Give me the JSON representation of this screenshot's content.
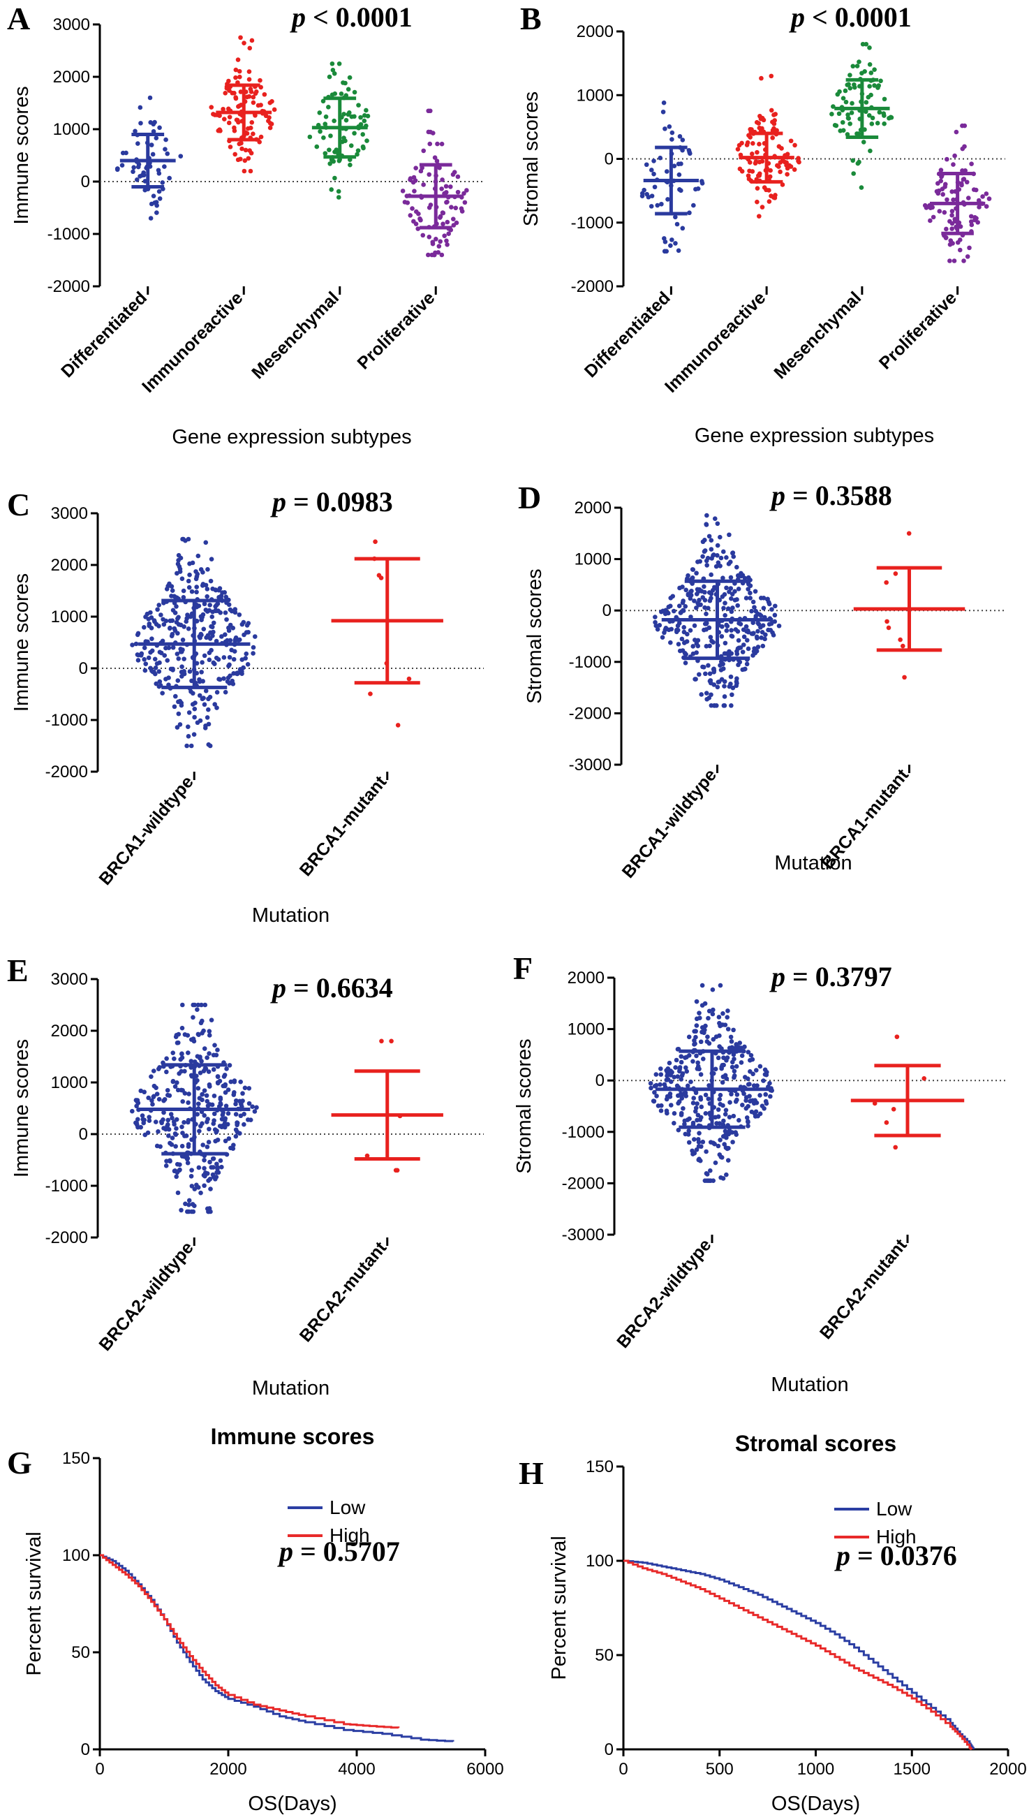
{
  "chart_data": [
    {
      "id": "A",
      "type": "scatter",
      "letter": "A",
      "p_prefix": "p",
      "p_rest": " < 0.0001",
      "ylabel": "Immune scores",
      "xlabel": "Gene expression subtypes",
      "ylim": [
        -2000,
        3000
      ],
      "yticks": [
        -2000,
        -1000,
        0,
        1000,
        2000,
        3000
      ],
      "categories": [
        "Differentiated",
        "Immunoreactive",
        "Mesenchymal",
        "Proliferative"
      ],
      "series": [
        {
          "name": "Differentiated",
          "color": "#2a3a9e",
          "mean": 400,
          "sd": 500,
          "min": -700,
          "max": 1600,
          "n": 60
        },
        {
          "name": "Immunoreactive",
          "color": "#e8211e",
          "mean": 1320,
          "sd": 520,
          "min": 200,
          "max": 2750,
          "n": 110
        },
        {
          "name": "Mesenchymal",
          "color": "#1a8a3a",
          "mean": 1030,
          "sd": 560,
          "min": -300,
          "max": 2250,
          "n": 80
        },
        {
          "name": "Proliferative",
          "color": "#7a2a9a",
          "mean": -280,
          "sd": 600,
          "min": -1400,
          "max": 1350,
          "n": 100
        }
      ]
    },
    {
      "id": "B",
      "type": "scatter",
      "letter": "B",
      "p_prefix": "p",
      "p_rest": " < 0.0001",
      "ylabel": "Stromal scores",
      "xlabel": "Gene expression subtypes",
      "ylim": [
        -2000,
        2000
      ],
      "yticks": [
        -2000,
        -1000,
        0,
        1000,
        2000
      ],
      "categories": [
        "Differentiated",
        "Immunoreactive",
        "Mesenchymal",
        "Proliferative"
      ],
      "series": [
        {
          "name": "Differentiated",
          "color": "#2a3a9e",
          "mean": -340,
          "sd": 520,
          "min": -1450,
          "max": 880,
          "n": 60
        },
        {
          "name": "Immunoreactive",
          "color": "#e8211e",
          "mean": 20,
          "sd": 380,
          "min": -900,
          "max": 1300,
          "n": 110
        },
        {
          "name": "Mesenchymal",
          "color": "#1a8a3a",
          "mean": 790,
          "sd": 450,
          "min": -450,
          "max": 1800,
          "n": 80
        },
        {
          "name": "Proliferative",
          "color": "#7a2a9a",
          "mean": -700,
          "sd": 470,
          "min": -1600,
          "max": 520,
          "n": 100
        }
      ]
    },
    {
      "id": "C",
      "type": "scatter",
      "letter": "C",
      "p_prefix": "p",
      "p_rest": " = 0.0983",
      "ylabel": "Immune scores",
      "xlabel": "Mutation",
      "ylim": [
        -2000,
        3000
      ],
      "yticks": [
        -2000,
        -1000,
        0,
        1000,
        2000,
        3000
      ],
      "categories": [
        "BRCA1-wildtype",
        "BRCA1-mutant"
      ],
      "series": [
        {
          "name": "BRCA1-wildtype",
          "color": "#2a3a9e",
          "mean": 470,
          "sd": 840,
          "min": -1500,
          "max": 2500,
          "n": 360
        },
        {
          "name": "BRCA1-mutant",
          "color": "#e8211e",
          "mean": 920,
          "sd": 1200,
          "min": -1100,
          "max": 2450,
          "n": 8
        }
      ]
    },
    {
      "id": "D",
      "type": "scatter",
      "letter": "D",
      "p_prefix": "p",
      "p_rest": " = 0.3588",
      "ylabel": "Stromal scores",
      "xlabel": "Mutation",
      "ylim": [
        -3000,
        2000
      ],
      "yticks": [
        -3000,
        -2000,
        -1000,
        0,
        1000,
        2000
      ],
      "categories": [
        "BRCA1-wildtype",
        "BRCA1-mutant"
      ],
      "series": [
        {
          "name": "BRCA1-wildtype",
          "color": "#2a3a9e",
          "mean": -180,
          "sd": 750,
          "min": -1850,
          "max": 1850,
          "n": 360
        },
        {
          "name": "BRCA1-mutant",
          "color": "#e8211e",
          "mean": 30,
          "sd": 800,
          "min": -1300,
          "max": 1500,
          "n": 8
        }
      ]
    },
    {
      "id": "E",
      "type": "scatter",
      "letter": "E",
      "p_prefix": "p",
      "p_rest": " = 0.6634",
      "ylabel": "Immune scores",
      "xlabel": "Mutation",
      "ylim": [
        -2000,
        3000
      ],
      "yticks": [
        -2000,
        -1000,
        0,
        1000,
        2000,
        3000
      ],
      "categories": [
        "BRCA2-wildtype",
        "BRCA2-mutant"
      ],
      "series": [
        {
          "name": "BRCA2-wildtype",
          "color": "#2a3a9e",
          "mean": 480,
          "sd": 860,
          "min": -1500,
          "max": 2500,
          "n": 360
        },
        {
          "name": "BRCA2-mutant",
          "color": "#e8211e",
          "mean": 370,
          "sd": 850,
          "min": -700,
          "max": 1800,
          "n": 6
        }
      ]
    },
    {
      "id": "F",
      "type": "scatter",
      "letter": "F",
      "p_prefix": "p",
      "p_rest": " = 0.3797",
      "ylabel": "Stromal scores",
      "xlabel": "Mutation",
      "ylim": [
        -3000,
        2000
      ],
      "yticks": [
        -3000,
        -2000,
        -1000,
        0,
        1000,
        2000
      ],
      "categories": [
        "BRCA2-wildtype",
        "BRCA2-mutant"
      ],
      "series": [
        {
          "name": "BRCA2-wildtype",
          "color": "#2a3a9e",
          "mean": -170,
          "sd": 740,
          "min": -1950,
          "max": 1850,
          "n": 360
        },
        {
          "name": "BRCA2-mutant",
          "color": "#e8211e",
          "mean": -390,
          "sd": 680,
          "min": -1300,
          "max": 850,
          "n": 6
        }
      ]
    },
    {
      "id": "G",
      "type": "line",
      "letter": "G",
      "title": "Immune scores",
      "p_prefix": "p",
      "p_rest": " = 0.5707",
      "ylabel": "Percent survival",
      "xlabel": "OS(Days)",
      "xlim": [
        0,
        6000
      ],
      "ylim": [
        0,
        150
      ],
      "xticks": [
        0,
        2000,
        4000,
        6000
      ],
      "yticks": [
        0,
        50,
        100,
        150
      ],
      "series": [
        {
          "name": "Low",
          "color": "#2b3ea3",
          "points": [
            [
              0,
              100
            ],
            [
              200,
              97
            ],
            [
              400,
              92
            ],
            [
              600,
              85
            ],
            [
              800,
              77
            ],
            [
              1000,
              67
            ],
            [
              1200,
              55
            ],
            [
              1400,
              45
            ],
            [
              1600,
              36
            ],
            [
              1800,
              30
            ],
            [
              2000,
              26
            ],
            [
              2400,
              22
            ],
            [
              2800,
              17
            ],
            [
              3200,
              14
            ],
            [
              3800,
              10
            ],
            [
              4400,
              8
            ],
            [
              5000,
              5
            ],
            [
              5500,
              4
            ]
          ]
        },
        {
          "name": "High",
          "color": "#e82a2a",
          "points": [
            [
              0,
              100
            ],
            [
              200,
              95
            ],
            [
              400,
              90
            ],
            [
              600,
              84
            ],
            [
              800,
              76
            ],
            [
              1000,
              67
            ],
            [
              1200,
              57
            ],
            [
              1400,
              48
            ],
            [
              1600,
              40
            ],
            [
              1800,
              33
            ],
            [
              2000,
              28
            ],
            [
              2400,
              23
            ],
            [
              2800,
              20
            ],
            [
              3200,
              17
            ],
            [
              3800,
              13
            ],
            [
              4200,
              12
            ],
            [
              4650,
              11
            ]
          ]
        }
      ]
    },
    {
      "id": "H",
      "type": "line",
      "letter": "H",
      "title": "Stromal scores",
      "p_prefix": "p",
      "p_rest": " = 0.0376",
      "ylabel": "Percent survival",
      "xlabel": "OS(Days)",
      "xlim": [
        0,
        2000
      ],
      "ylim": [
        0,
        150
      ],
      "xticks": [
        0,
        500,
        1000,
        1500,
        2000
      ],
      "yticks": [
        0,
        50,
        100,
        150
      ],
      "series": [
        {
          "name": "Low",
          "color": "#2b3ea3",
          "points": [
            [
              0,
              100
            ],
            [
              100,
              99
            ],
            [
              200,
              97
            ],
            [
              300,
              95
            ],
            [
              400,
              93
            ],
            [
              500,
              90
            ],
            [
              600,
              86
            ],
            [
              700,
              82
            ],
            [
              800,
              77
            ],
            [
              900,
              72
            ],
            [
              1000,
              67
            ],
            [
              1100,
              61
            ],
            [
              1200,
              54
            ],
            [
              1300,
              46
            ],
            [
              1400,
              38
            ],
            [
              1500,
              30
            ],
            [
              1600,
              22
            ],
            [
              1700,
              14
            ],
            [
              1750,
              8
            ],
            [
              1800,
              3
            ],
            [
              1820,
              0
            ]
          ]
        },
        {
          "name": "High",
          "color": "#e82a2a",
          "points": [
            [
              0,
              100
            ],
            [
              100,
              96
            ],
            [
              200,
              93
            ],
            [
              300,
              89
            ],
            [
              400,
              85
            ],
            [
              500,
              80
            ],
            [
              600,
              75
            ],
            [
              700,
              70
            ],
            [
              800,
              65
            ],
            [
              900,
              60
            ],
            [
              1000,
              55
            ],
            [
              1100,
              49
            ],
            [
              1200,
              43
            ],
            [
              1300,
              38
            ],
            [
              1400,
              33
            ],
            [
              1500,
              27
            ],
            [
              1600,
              20
            ],
            [
              1700,
              12
            ],
            [
              1750,
              7
            ],
            [
              1800,
              1
            ],
            [
              1810,
              0
            ]
          ]
        }
      ]
    }
  ]
}
